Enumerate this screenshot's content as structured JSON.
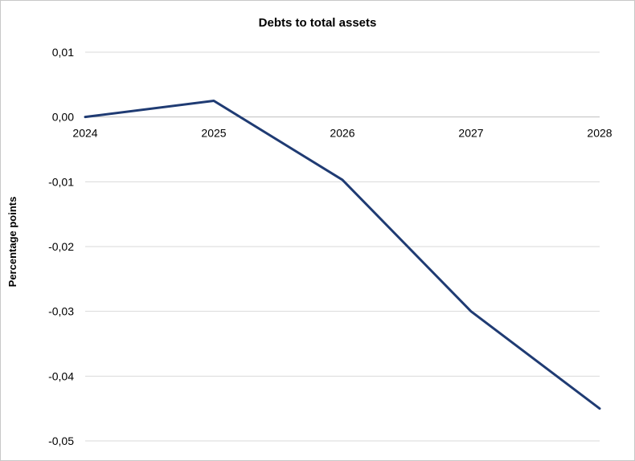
{
  "chart_data": {
    "type": "line",
    "title": "Debts to total assets",
    "xlabel": "",
    "ylabel": "Percentage points",
    "categories": [
      "2024",
      "2025",
      "2026",
      "2027",
      "2028"
    ],
    "series": [
      {
        "values": [
          0.0,
          0.0025,
          -0.0097,
          -0.03,
          -0.045
        ]
      }
    ],
    "ylim": [
      -0.05,
      0.01
    ],
    "yticks": [
      0.01,
      0.0,
      -0.01,
      -0.02,
      -0.03,
      -0.04,
      -0.05
    ],
    "ytick_labels": [
      "0,01",
      "0,00",
      "-0,01",
      "-0,02",
      "-0,03",
      "-0,04",
      "-0,05"
    ],
    "grid": true,
    "legend": "none",
    "colors": {
      "series": "#1f3b73",
      "grid": "#d9d9d9"
    }
  }
}
